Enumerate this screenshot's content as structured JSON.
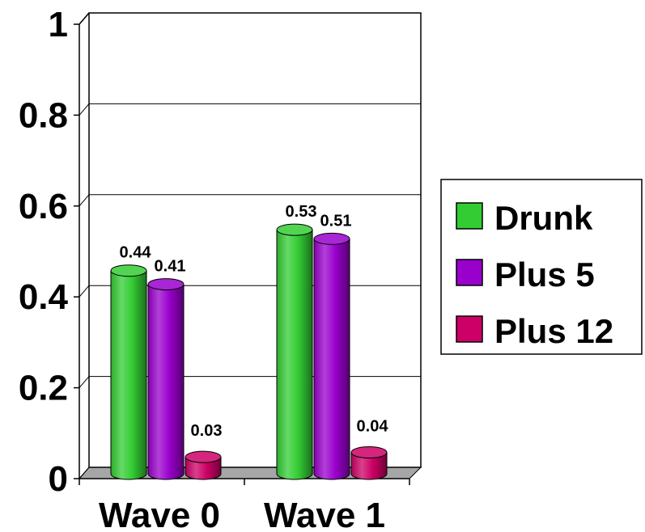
{
  "chart_data": {
    "type": "bar",
    "style": "3d-cylinder",
    "categories": [
      "Wave 0",
      "Wave 1"
    ],
    "series": [
      {
        "name": "Drunk",
        "values": [
          0.44,
          0.53
        ],
        "labels": [
          "0.44",
          "0.53"
        ],
        "color": "#33cc33"
      },
      {
        "name": "Plus 5",
        "values": [
          0.41,
          0.51
        ],
        "labels": [
          "0.41",
          "0.51"
        ],
        "color": "#9900cc"
      },
      {
        "name": "Plus 12",
        "values": [
          0.03,
          0.04
        ],
        "labels": [
          "0.03",
          "0.04"
        ],
        "color": "#cc0066"
      }
    ],
    "yticks": [
      "0",
      "0.2",
      "0.4",
      "0.6",
      "0.8",
      "1"
    ],
    "ylim": [
      0,
      1
    ],
    "grid": true,
    "legend": "right",
    "title": "",
    "xlabel": "",
    "ylabel": ""
  }
}
